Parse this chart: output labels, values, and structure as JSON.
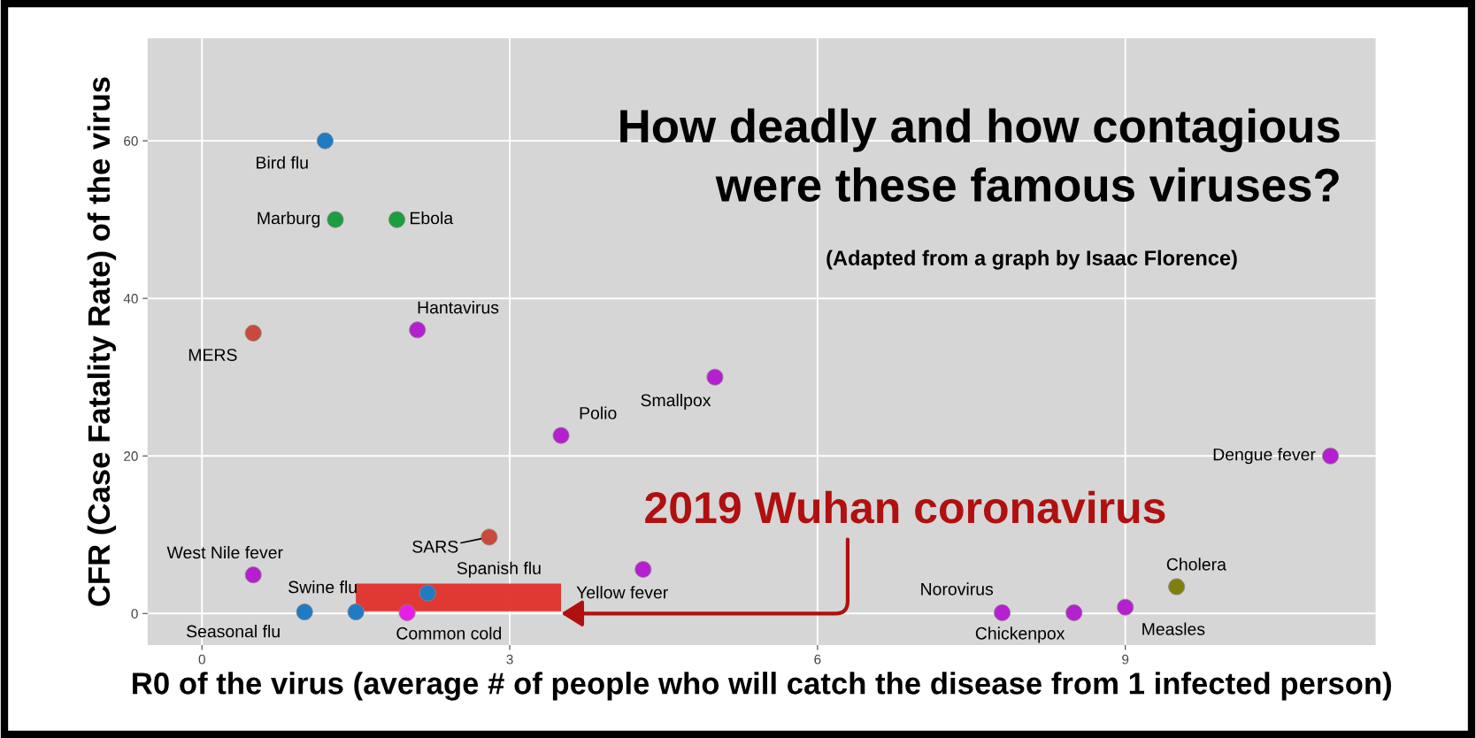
{
  "chart_data": {
    "type": "scatter",
    "title": "How deadly and how contagious\nwere these famous viruses?",
    "subtitle": "(Adapted from a graph by Isaac Florence)",
    "xlabel": "R0 of the virus (average # of people who will catch the disease from 1 infected person)",
    "ylabel": "CFR (Case Fatality Rate) of the virus",
    "xlim": [
      -0.53,
      11.44
    ],
    "ylim": [
      -4,
      73
    ],
    "xticks": [
      0,
      3,
      6,
      9
    ],
    "yticks": [
      0,
      20,
      40,
      60
    ],
    "grid": true,
    "marker": "circle",
    "series": [
      {
        "x": [
          1.2,
          1.3,
          1.9,
          0.5,
          2.1,
          5.0,
          3.5,
          11.0,
          2.8,
          0.5,
          4.3,
          2.2,
          1.5,
          1.0,
          2.0,
          7.8,
          8.5,
          9.0,
          9.5
        ],
        "values": [
          60,
          50,
          50,
          35.6,
          36,
          30,
          22.6,
          20,
          9.7,
          4.9,
          5.6,
          2.6,
          0.2,
          0.2,
          0.1,
          0.1,
          0.1,
          0.8,
          3.4
        ],
        "colors": [
          "#1f7bc4",
          "#1b9e3e",
          "#1b9e3e",
          "#c94a3b",
          "#b61fd0",
          "#b61fd0",
          "#b61fd0",
          "#b61fd0",
          "#c94a3b",
          "#b61fd0",
          "#b61fd0",
          "#1f7bc4",
          "#1f7bc4",
          "#1f7bc4",
          "#e81ee8",
          "#b61fd0",
          "#b61fd0",
          "#b61fd0",
          "#7f7f10"
        ]
      },
      {
        "type": "area",
        "x": [
          1.5,
          3.5
        ],
        "lower": [
          0.3,
          0.3
        ],
        "upper": [
          3.8,
          3.8
        ],
        "values": [
          null,
          null
        ],
        "color": "#e0302a"
      }
    ],
    "annotations": [
      {
        "text": "Bird flu",
        "x": 1.2,
        "y": 60
      },
      {
        "text": "Marburg",
        "x": 1.3,
        "y": 50
      },
      {
        "text": "Ebola",
        "x": 1.9,
        "y": 50
      },
      {
        "text": "MERS",
        "x": 0.5,
        "y": 35.6
      },
      {
        "text": "Hantavirus",
        "x": 2.1,
        "y": 36
      },
      {
        "text": "Smallpox",
        "x": 5.0,
        "y": 30
      },
      {
        "text": "Polio",
        "x": 3.5,
        "y": 22.6
      },
      {
        "text": "Dengue fever",
        "x": 11.0,
        "y": 20
      },
      {
        "text": "SARS",
        "x": 2.8,
        "y": 9.7
      },
      {
        "text": "West Nile fever",
        "x": 0.5,
        "y": 4.9
      },
      {
        "text": "Yellow fever",
        "x": 4.3,
        "y": 5.6
      },
      {
        "text": "Spanish flu",
        "x": 2.2,
        "y": 2.6
      },
      {
        "text": "Swine flu",
        "x": 1.5,
        "y": 0.2
      },
      {
        "text": "Seasonal flu",
        "x": 1.0,
        "y": 0.2
      },
      {
        "text": "Common cold",
        "x": 2.0,
        "y": 0.1
      },
      {
        "text": "Norovirus",
        "x": 7.8,
        "y": 0.1
      },
      {
        "text": "Chickenpox",
        "x": 8.5,
        "y": 0.1
      },
      {
        "text": "Measles",
        "x": 9.0,
        "y": 0.8
      },
      {
        "text": "Cholera",
        "x": 9.5,
        "y": 3.4
      },
      {
        "text": "2019 Wuhan coronavirus",
        "x": 3.5,
        "y": 0
      }
    ]
  }
}
